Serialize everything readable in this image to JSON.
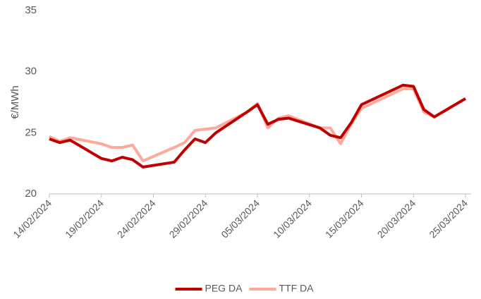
{
  "chart_data": {
    "type": "line",
    "y_label": "€/MWh",
    "x": [
      "14/02/2024",
      "15/02/2024",
      "16/02/2024",
      "19/02/2024",
      "20/02/2024",
      "21/02/2024",
      "22/02/2024",
      "23/02/2024",
      "26/02/2024",
      "27/02/2024",
      "28/02/2024",
      "29/02/2024",
      "01/03/2024",
      "04/03/2024",
      "05/03/2024",
      "06/03/2024",
      "07/03/2024",
      "08/03/2024",
      "11/03/2024",
      "12/03/2024",
      "13/03/2024",
      "14/03/2024",
      "15/03/2024",
      "18/03/2024",
      "19/03/2024",
      "20/03/2024",
      "21/03/2024",
      "22/03/2024",
      "25/03/2024"
    ],
    "series": [
      {
        "name": "PEG DA",
        "color": "#c00000",
        "values": [
          24.5,
          24.2,
          24.4,
          22.9,
          22.7,
          23.0,
          22.8,
          22.2,
          22.6,
          23.6,
          24.5,
          24.2,
          25.0,
          26.7,
          27.3,
          25.7,
          26.1,
          26.2,
          25.4,
          24.8,
          24.6,
          25.8,
          27.3,
          28.5,
          28.9,
          28.8,
          26.9,
          26.3,
          27.8
        ]
      },
      {
        "name": "TTF DA",
        "color": "#ffa89c",
        "values": [
          24.7,
          24.3,
          24.6,
          24.1,
          23.8,
          23.8,
          24.0,
          22.7,
          23.8,
          24.2,
          25.2,
          25.3,
          25.4,
          26.7,
          27.4,
          25.4,
          26.2,
          26.4,
          25.4,
          25.4,
          24.1,
          25.7,
          27.0,
          28.2,
          28.6,
          28.6,
          26.7,
          26.3,
          27.8
        ]
      }
    ],
    "xlim": [
      "14/02/2024",
      "25/03/2024"
    ],
    "xticks": [
      "14/02/2024",
      "19/02/2024",
      "24/02/2024",
      "29/02/2024",
      "05/03/2024",
      "10/03/2024",
      "15/03/2024",
      "20/03/2024",
      "25/03/2024"
    ],
    "ylim": [
      20,
      35
    ],
    "yticks": [
      20,
      25,
      30,
      35
    ],
    "grid": false,
    "legend": "bottom"
  }
}
